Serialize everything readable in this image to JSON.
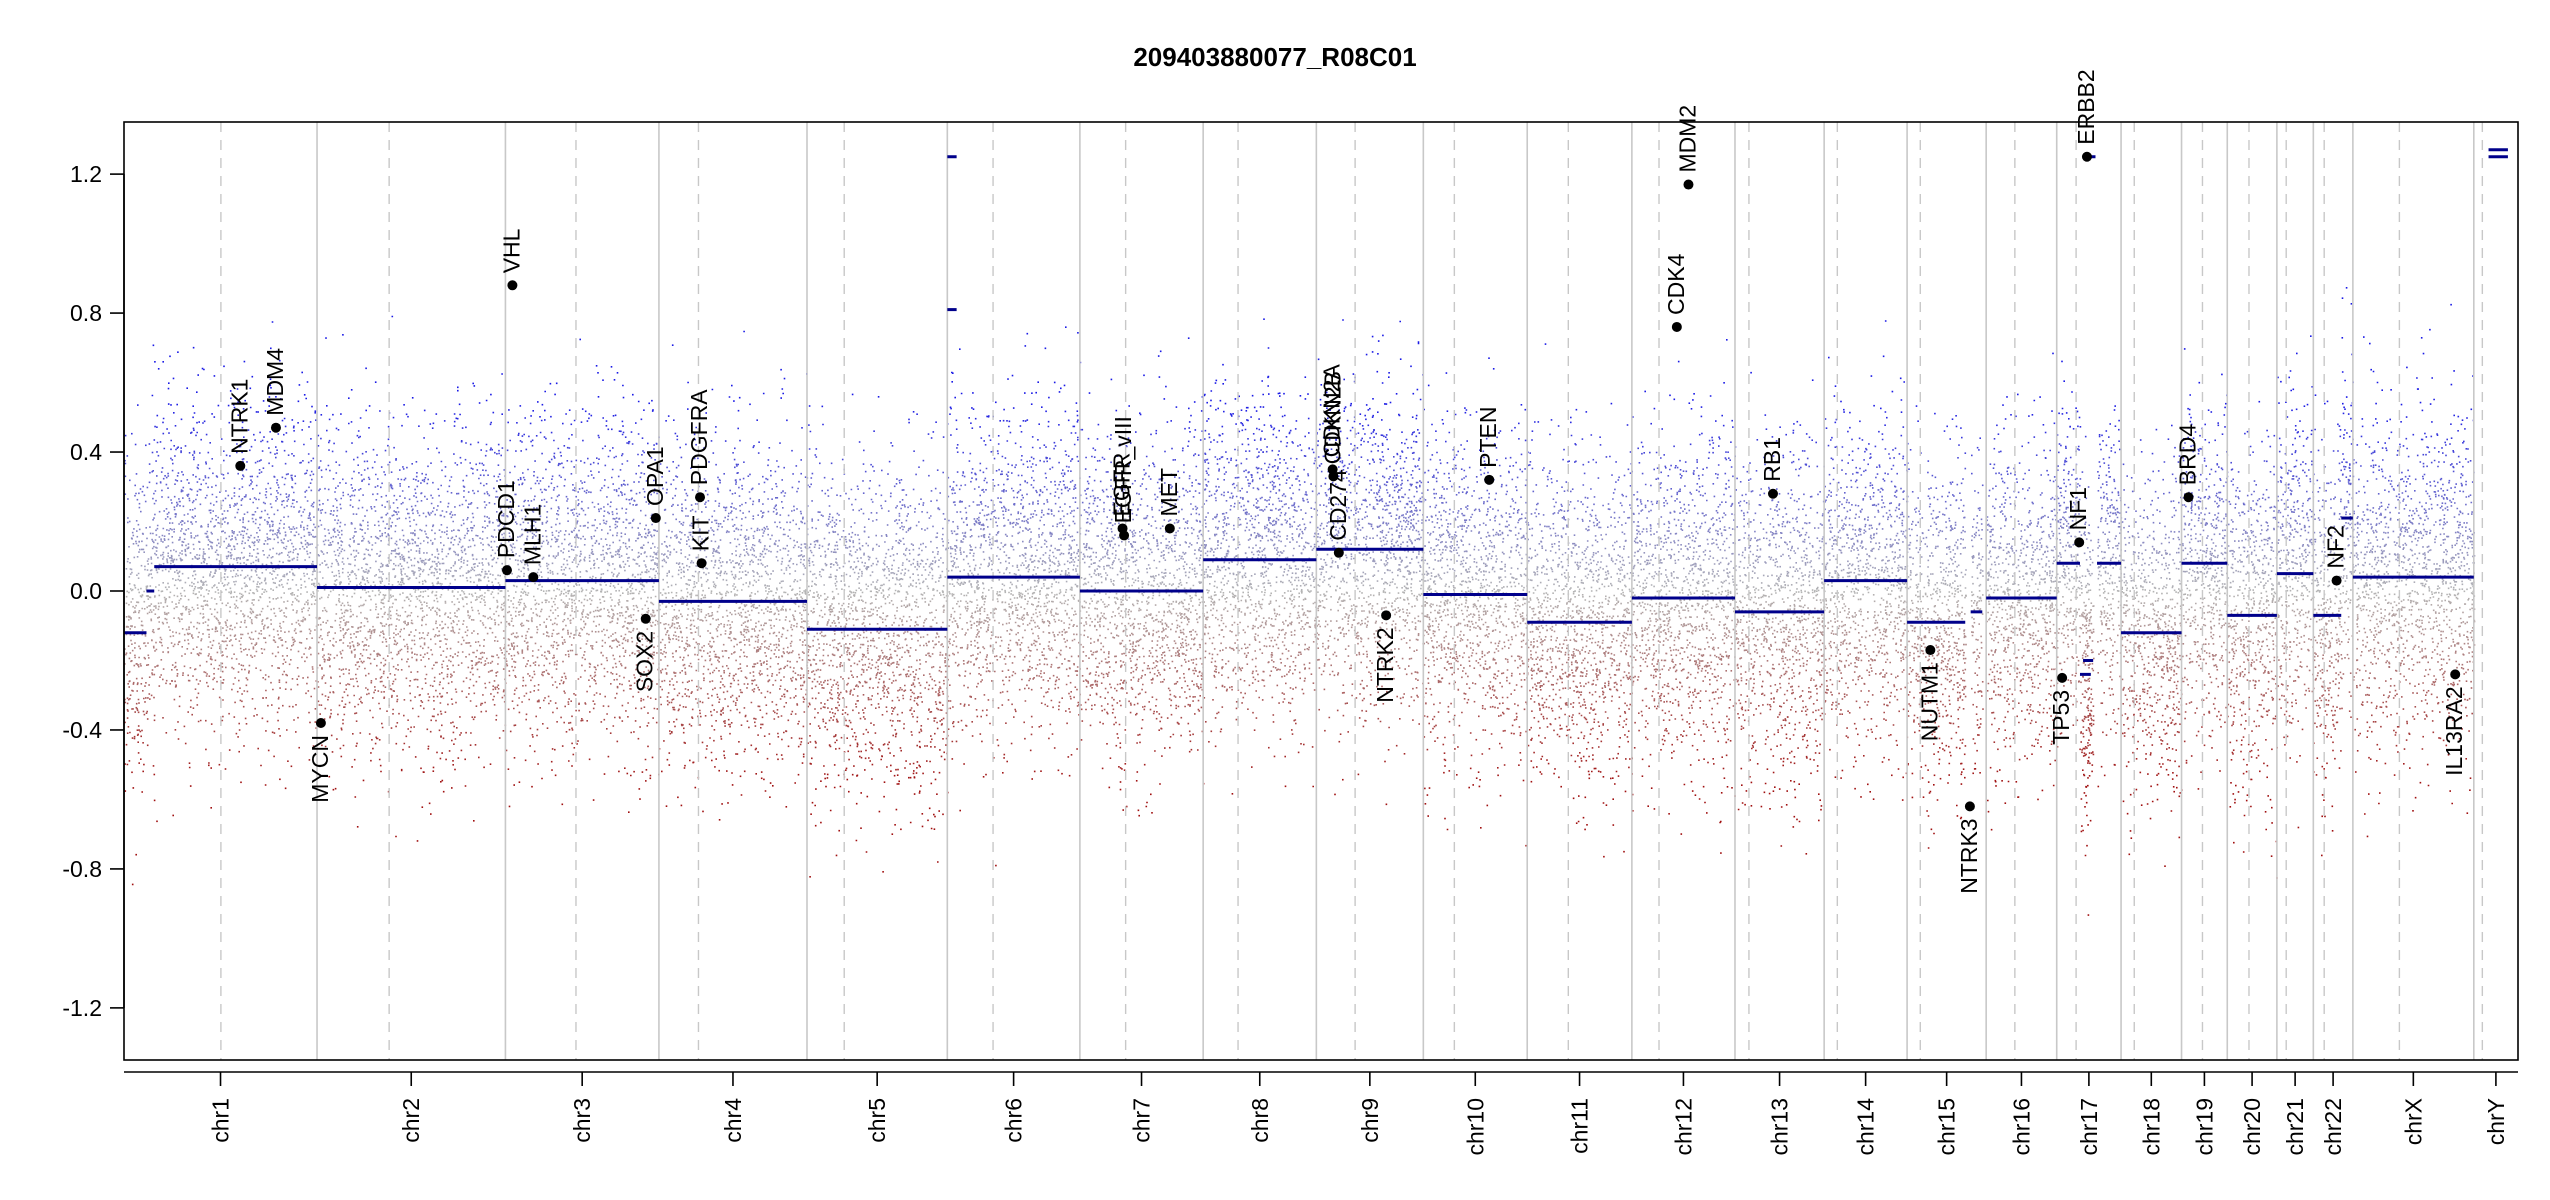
{
  "chart_data": {
    "type": "scatter",
    "title": "209403880077_R08C01",
    "xlabel": "",
    "ylabel": "",
    "ylim": [
      -1.35,
      1.35
    ],
    "yticks": [
      -1.2,
      -0.8,
      -0.4,
      0.0,
      0.4,
      0.8,
      1.2
    ],
    "ytick_labels": [
      "-1.2",
      "-0.8",
      "-0.4",
      "0.0",
      "0.4",
      "0.8",
      "1.2"
    ],
    "grid": false,
    "legend": "none",
    "colors": {
      "gain": "#1a1ae6",
      "loss": "#a01010",
      "neutral": "#b4b4b4",
      "segment": "#00008b",
      "gene_point": "#000000",
      "chrom_boundary": "#c8c8c8",
      "centromere": "#c8c8c8"
    },
    "chromosomes": [
      {
        "name": "chr1",
        "label": "chr1",
        "start": 0,
        "end": 249,
        "centromere": 125
      },
      {
        "name": "chr2",
        "label": "chr2",
        "start": 249,
        "end": 492,
        "centromere": 342
      },
      {
        "name": "chr3",
        "label": "chr3",
        "start": 492,
        "end": 690,
        "centromere": 583
      },
      {
        "name": "chr4",
        "label": "chr4",
        "start": 690,
        "end": 881,
        "centromere": 741
      },
      {
        "name": "chr5",
        "label": "chr5",
        "start": 881,
        "end": 1062,
        "centromere": 929
      },
      {
        "name": "chr6",
        "label": "chr6",
        "start": 1062,
        "end": 1233,
        "centromere": 1121
      },
      {
        "name": "chr7",
        "label": "chr7",
        "start": 1233,
        "end": 1392,
        "centromere": 1292
      },
      {
        "name": "chr8",
        "label": "chr8",
        "start": 1392,
        "end": 1538,
        "centromere": 1437
      },
      {
        "name": "chr9",
        "label": "chr9",
        "start": 1538,
        "end": 1676,
        "centromere": 1588
      },
      {
        "name": "chr10",
        "label": "chr10",
        "start": 1676,
        "end": 1810,
        "centromere": 1716
      },
      {
        "name": "chr11",
        "label": "chr11",
        "start": 1810,
        "end": 1945,
        "centromere": 1863
      },
      {
        "name": "chr12",
        "label": "chr12",
        "start": 1945,
        "end": 2078,
        "centromere": 1980
      },
      {
        "name": "chr13",
        "label": "chr13",
        "start": 2078,
        "end": 2193,
        "centromere": 2096
      },
      {
        "name": "chr14",
        "label": "chr14",
        "start": 2193,
        "end": 2300,
        "centromere": 2210
      },
      {
        "name": "chr15",
        "label": "chr15",
        "start": 2300,
        "end": 2402,
        "centromere": 2317
      },
      {
        "name": "chr16",
        "label": "chr16",
        "start": 2402,
        "end": 2493,
        "centromere": 2439
      },
      {
        "name": "chr17",
        "label": "chr17",
        "start": 2493,
        "end": 2576,
        "centromere": 2518
      },
      {
        "name": "chr18",
        "label": "chr18",
        "start": 2576,
        "end": 2654,
        "centromere": 2593
      },
      {
        "name": "chr19",
        "label": "chr19",
        "start": 2654,
        "end": 2713,
        "centromere": 2681
      },
      {
        "name": "chr20",
        "label": "chr20",
        "start": 2713,
        "end": 2777,
        "centromere": 2741
      },
      {
        "name": "chr21",
        "label": "chr21",
        "start": 2777,
        "end": 2824,
        "centromere": 2789
      },
      {
        "name": "chr22",
        "label": "chr22",
        "start": 2824,
        "end": 2875,
        "centromere": 2838
      },
      {
        "name": "chrX",
        "label": "chrX",
        "start": 2875,
        "end": 3031,
        "centromere": 2935
      },
      {
        "name": "chrY",
        "label": "chrY",
        "start": 3031,
        "end": 3088,
        "centromere": 3042
      }
    ],
    "segments": [
      {
        "chrom": "chr1",
        "x0": 0,
        "x1": 29,
        "value": -0.12
      },
      {
        "chrom": "chr1",
        "x0": 29,
        "x1": 39,
        "value": 0.0
      },
      {
        "chrom": "chr1",
        "x0": 39,
        "x1": 249,
        "value": 0.07
      },
      {
        "chrom": "chr2",
        "x0": 249,
        "x1": 492,
        "value": 0.01
      },
      {
        "chrom": "chr3",
        "x0": 492,
        "x1": 690,
        "value": 0.03
      },
      {
        "chrom": "chr4",
        "x0": 690,
        "x1": 881,
        "value": -0.03
      },
      {
        "chrom": "chr5",
        "x0": 881,
        "x1": 1062,
        "value": -0.11
      },
      {
        "chrom": "chr6",
        "x0": 1062,
        "x1": 1074,
        "value": 1.25
      },
      {
        "chrom": "chr6",
        "x0": 1062,
        "x1": 1074,
        "value": 0.81
      },
      {
        "chrom": "chr6",
        "x0": 1062,
        "x1": 1233,
        "value": 0.04
      },
      {
        "chrom": "chr7",
        "x0": 1233,
        "x1": 1392,
        "value": 0.0
      },
      {
        "chrom": "chr8",
        "x0": 1392,
        "x1": 1538,
        "value": 0.09
      },
      {
        "chrom": "chr9",
        "x0": 1538,
        "x1": 1676,
        "value": 0.12
      },
      {
        "chrom": "chr10",
        "x0": 1676,
        "x1": 1810,
        "value": -0.01
      },
      {
        "chrom": "chr11",
        "x0": 1810,
        "x1": 1945,
        "value": -0.09
      },
      {
        "chrom": "chr12",
        "x0": 1945,
        "x1": 2078,
        "value": -0.02
      },
      {
        "chrom": "chr13",
        "x0": 2078,
        "x1": 2193,
        "value": -0.06
      },
      {
        "chrom": "chr14",
        "x0": 2193,
        "x1": 2300,
        "value": 0.03
      },
      {
        "chrom": "chr15",
        "x0": 2300,
        "x1": 2375,
        "value": -0.09
      },
      {
        "chrom": "chr15",
        "x0": 2382,
        "x1": 2397,
        "value": -0.06
      },
      {
        "chrom": "chr16",
        "x0": 2402,
        "x1": 2493,
        "value": -0.02
      },
      {
        "chrom": "chr17",
        "x0": 2493,
        "x1": 2523,
        "value": 0.08
      },
      {
        "chrom": "chr17",
        "x0": 2523,
        "x1": 2537,
        "value": -0.24
      },
      {
        "chrom": "chr17",
        "x0": 2527,
        "x1": 2540,
        "value": -0.2
      },
      {
        "chrom": "chr17",
        "x0": 2527,
        "x1": 2543,
        "value": 1.25
      },
      {
        "chrom": "chr17",
        "x0": 2545,
        "x1": 2576,
        "value": 0.08
      },
      {
        "chrom": "chr18",
        "x0": 2576,
        "x1": 2654,
        "value": -0.12
      },
      {
        "chrom": "chr19",
        "x0": 2654,
        "x1": 2713,
        "value": 0.08
      },
      {
        "chrom": "chr20",
        "x0": 2713,
        "x1": 2777,
        "value": -0.07
      },
      {
        "chrom": "chr21",
        "x0": 2777,
        "x1": 2824,
        "value": 0.05
      },
      {
        "chrom": "chr22",
        "x0": 2824,
        "x1": 2860,
        "value": -0.07
      },
      {
        "chrom": "chr22",
        "x0": 2860,
        "x1": 2875,
        "value": 0.21
      },
      {
        "chrom": "chrX",
        "x0": 2875,
        "x1": 3031,
        "value": 0.04
      },
      {
        "chrom": "chrY",
        "x0": 3050,
        "x1": 3075,
        "value": 1.27
      },
      {
        "chrom": "chrY",
        "x0": 3050,
        "x1": 3075,
        "value": 1.25
      }
    ],
    "genes": [
      {
        "name": "NTRK1",
        "x": 150,
        "value": 0.36,
        "label_side": "above"
      },
      {
        "name": "MDM4",
        "x": 196,
        "value": 0.47,
        "label_side": "above"
      },
      {
        "name": "MYCN",
        "x": 254,
        "value": -0.38,
        "label_side": "below"
      },
      {
        "name": "VHL",
        "x": 501,
        "value": 0.88,
        "label_side": "above"
      },
      {
        "name": "PDCD1",
        "x": 494,
        "value": 0.06,
        "label_side": "above"
      },
      {
        "name": "MLH1",
        "x": 528,
        "value": 0.04,
        "label_side": "above"
      },
      {
        "name": "SOX2",
        "x": 673,
        "value": -0.08,
        "label_side": "below"
      },
      {
        "name": "OPA1",
        "x": 686,
        "value": 0.21,
        "label_side": "above"
      },
      {
        "name": "KIT",
        "x": 745,
        "value": 0.08,
        "label_side": "above"
      },
      {
        "name": "PDGFRA",
        "x": 743,
        "value": 0.27,
        "label_side": "above"
      },
      {
        "name": "EGFR",
        "x": 1288,
        "value": 0.18,
        "label_side": "above"
      },
      {
        "name": "EGFR_vIII",
        "x": 1290,
        "value": 0.16,
        "label_side": "above"
      },
      {
        "name": "MET",
        "x": 1349,
        "value": 0.18,
        "label_side": "above"
      },
      {
        "name": "CDKN2A",
        "x": 1559,
        "value": 0.35,
        "label_side": "above"
      },
      {
        "name": "CDKN2B",
        "x": 1560,
        "value": 0.33,
        "label_side": "above"
      },
      {
        "name": "CD274",
        "x": 1567,
        "value": 0.11,
        "label_side": "above"
      },
      {
        "name": "NTRK2",
        "x": 1628,
        "value": -0.07,
        "label_side": "below"
      },
      {
        "name": "PTEN",
        "x": 1761,
        "value": 0.32,
        "label_side": "above"
      },
      {
        "name": "CDK4",
        "x": 2003,
        "value": 0.76,
        "label_side": "above"
      },
      {
        "name": "MDM2",
        "x": 2018,
        "value": 1.17,
        "label_side": "above"
      },
      {
        "name": "RB1",
        "x": 2127,
        "value": 0.28,
        "label_side": "above"
      },
      {
        "name": "NUTM1",
        "x": 2330,
        "value": -0.17,
        "label_side": "below"
      },
      {
        "name": "NTRK3",
        "x": 2381,
        "value": -0.62,
        "label_side": "below"
      },
      {
        "name": "TP53",
        "x": 2500,
        "value": -0.25,
        "label_side": "below"
      },
      {
        "name": "NF1",
        "x": 2522,
        "value": 0.14,
        "label_side": "above"
      },
      {
        "name": "ERBB2",
        "x": 2532,
        "value": 1.25,
        "label_side": "above"
      },
      {
        "name": "BRD4",
        "x": 2663,
        "value": 0.27,
        "label_side": "above"
      },
      {
        "name": "NF2",
        "x": 2854,
        "value": 0.03,
        "label_side": "above"
      },
      {
        "name": "IL13RA2",
        "x": 3007,
        "value": -0.24,
        "label_side": "below"
      }
    ]
  }
}
